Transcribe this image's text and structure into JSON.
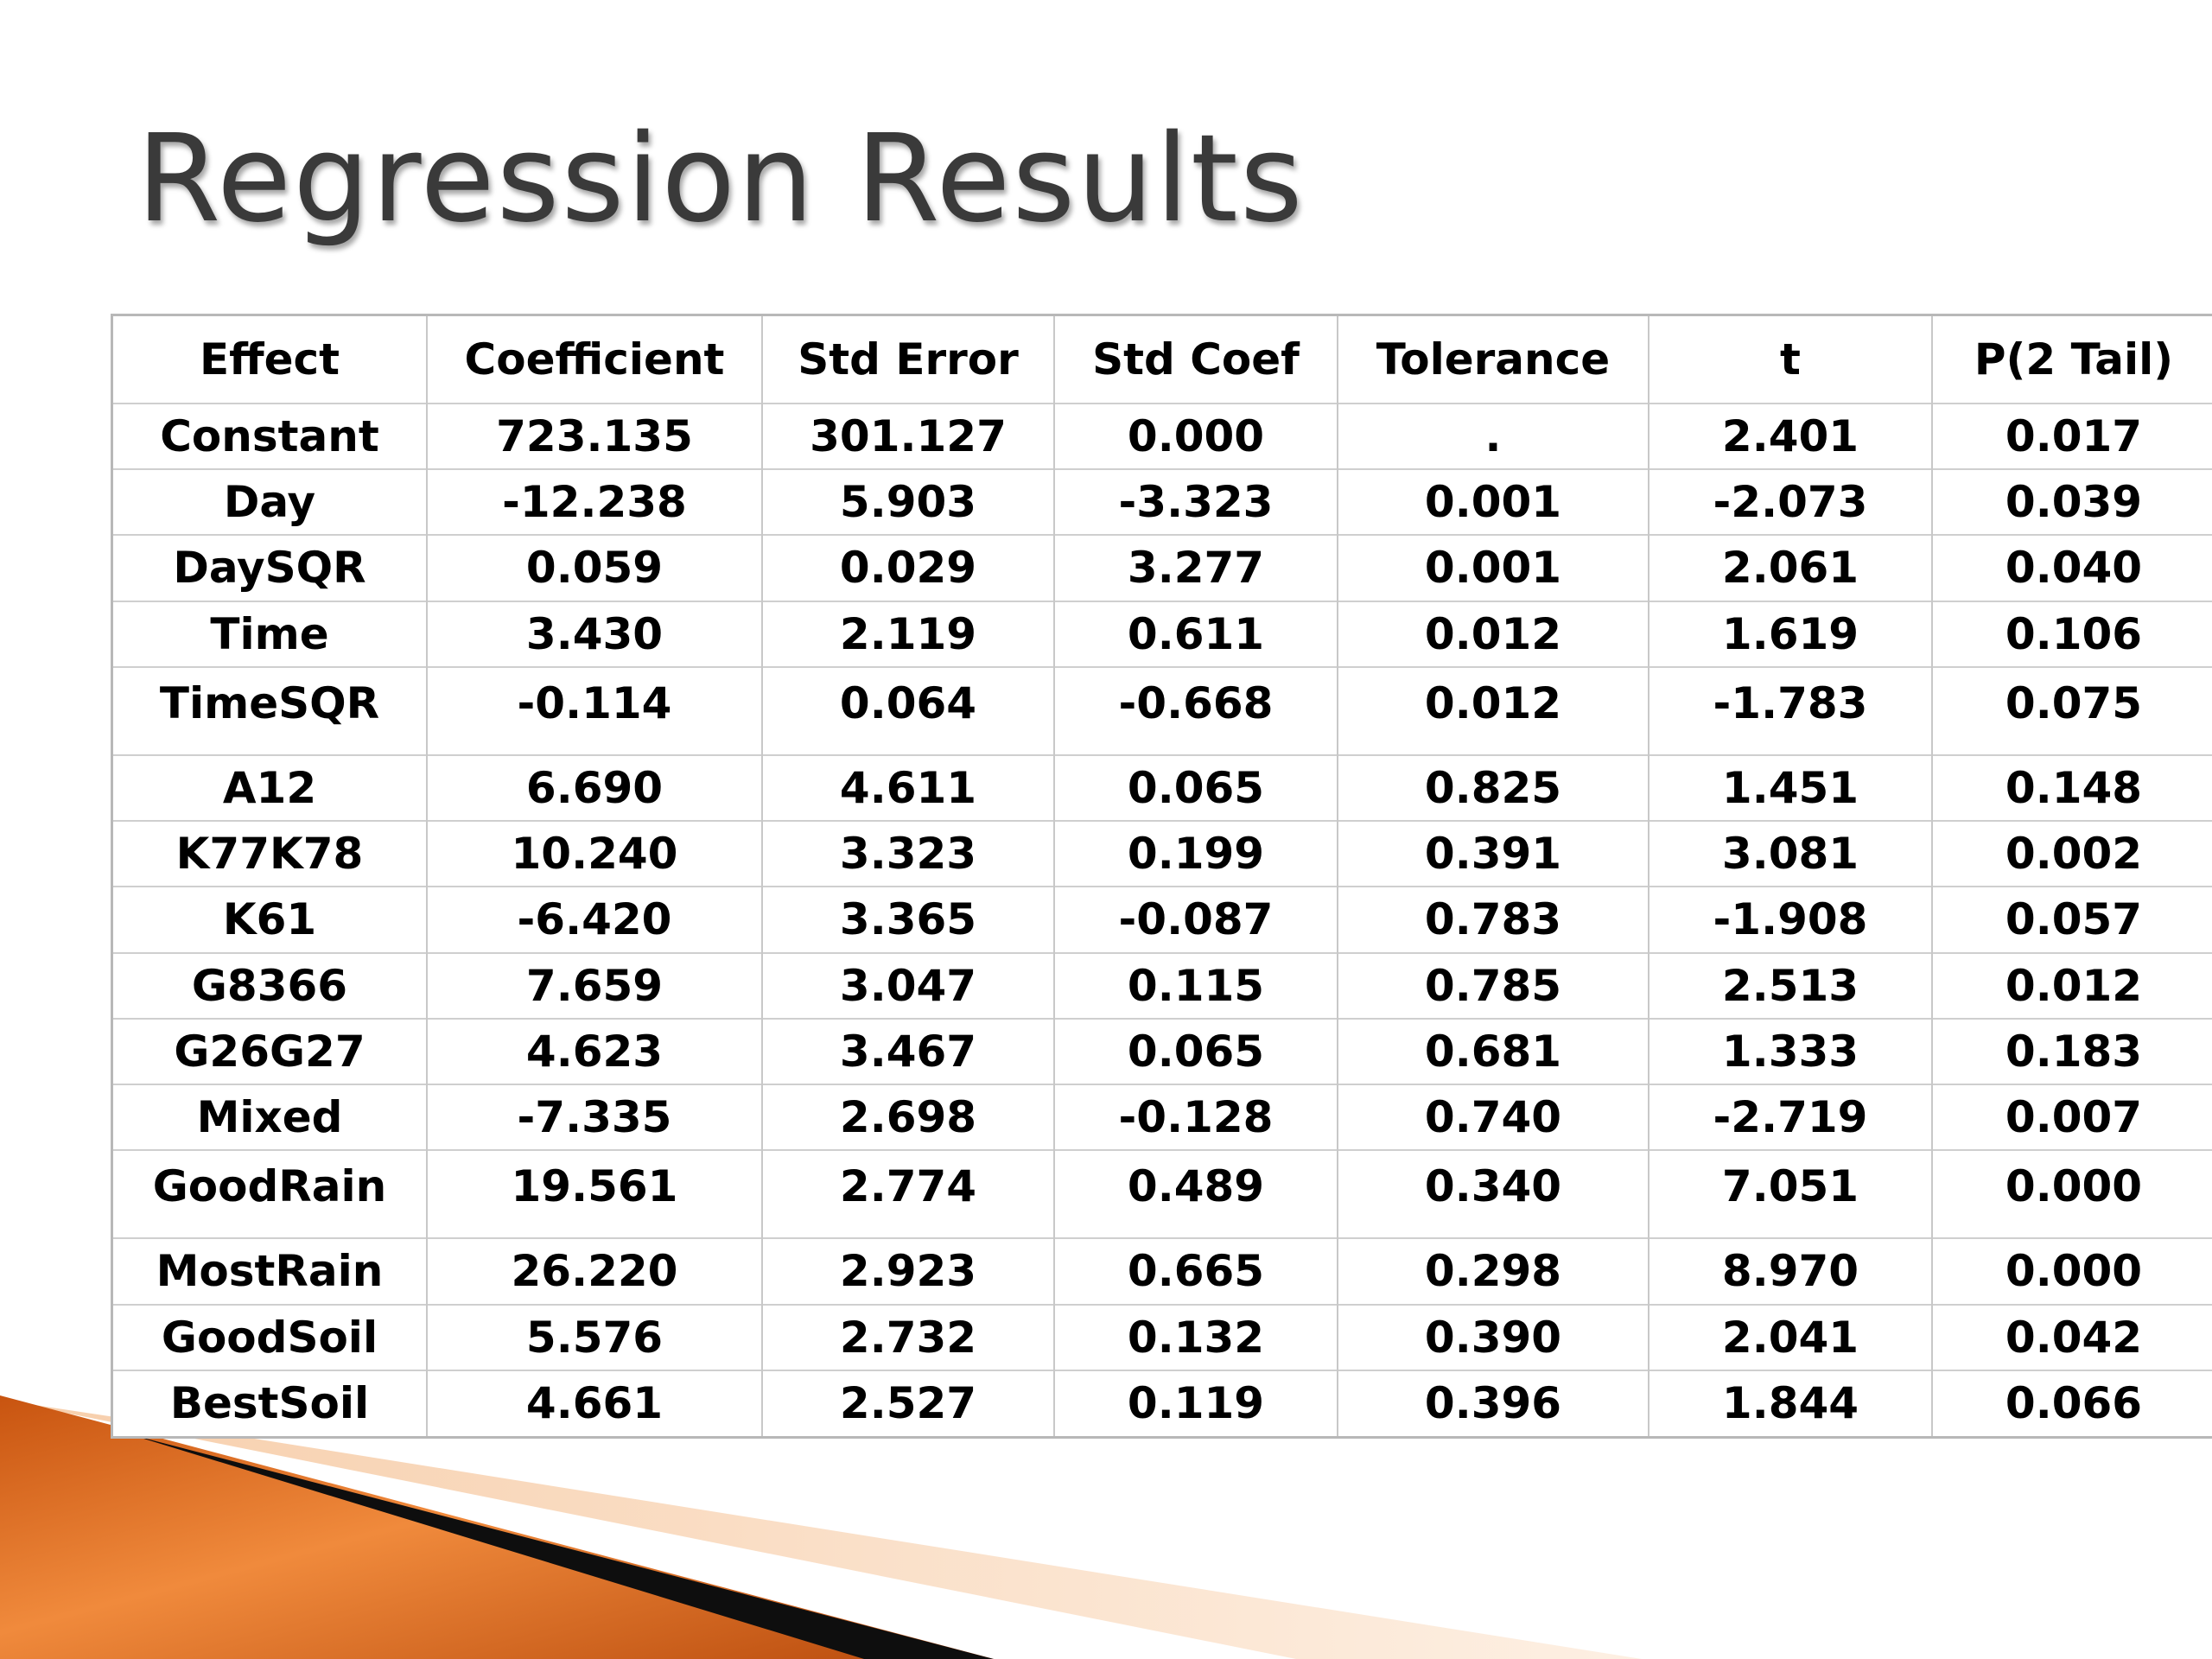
{
  "slide": {
    "title": "Regression Results"
  },
  "table": {
    "headers": [
      "Effect",
      "Coefficient",
      "Std Error",
      "Std Coef",
      "Tolerance",
      "t",
      "P(2 Tail)"
    ],
    "rows": [
      [
        "Constant",
        "723.135",
        "301.127",
        "0.000",
        ".",
        "2.401",
        "0.017"
      ],
      [
        "Day",
        "-12.238",
        "5.903",
        "-3.323",
        "0.001",
        "-2.073",
        "0.039"
      ],
      [
        "DaySQR",
        "0.059",
        "0.029",
        "3.277",
        "0.001",
        "2.061",
        "0.040"
      ],
      [
        "Time",
        "3.430",
        "2.119",
        "0.611",
        "0.012",
        "1.619",
        "0.106"
      ],
      [
        "TimeSQR",
        "-0.114",
        "0.064",
        "-0.668",
        "0.012",
        "-1.783",
        "0.075"
      ],
      [
        "A12",
        "6.690",
        "4.611",
        "0.065",
        "0.825",
        "1.451",
        "0.148"
      ],
      [
        "K77K78",
        "10.240",
        "3.323",
        "0.199",
        "0.391",
        "3.081",
        "0.002"
      ],
      [
        "K61",
        "-6.420",
        "3.365",
        "-0.087",
        "0.783",
        "-1.908",
        "0.057"
      ],
      [
        "G8366",
        "7.659",
        "3.047",
        "0.115",
        "0.785",
        "2.513",
        "0.012"
      ],
      [
        "G26G27",
        "4.623",
        "3.467",
        "0.065",
        "0.681",
        "1.333",
        "0.183"
      ],
      [
        "Mixed",
        "-7.335",
        "2.698",
        "-0.128",
        "0.740",
        "-2.719",
        "0.007"
      ],
      [
        "GoodRain",
        "19.561",
        "2.774",
        "0.489",
        "0.340",
        "7.051",
        "0.000"
      ],
      [
        "MostRain",
        "26.220",
        "2.923",
        "0.665",
        "0.298",
        "8.970",
        "0.000"
      ],
      [
        "GoodSoil",
        "5.576",
        "2.732",
        "0.132",
        "0.390",
        "2.041",
        "0.042"
      ],
      [
        "BestSoil",
        "4.661",
        "2.527",
        "0.119",
        "0.396",
        "1.844",
        "0.066"
      ]
    ]
  },
  "colors": {
    "title": "#3a3a3a",
    "accent_orange": "#e8782a",
    "accent_dark": "#111111"
  }
}
